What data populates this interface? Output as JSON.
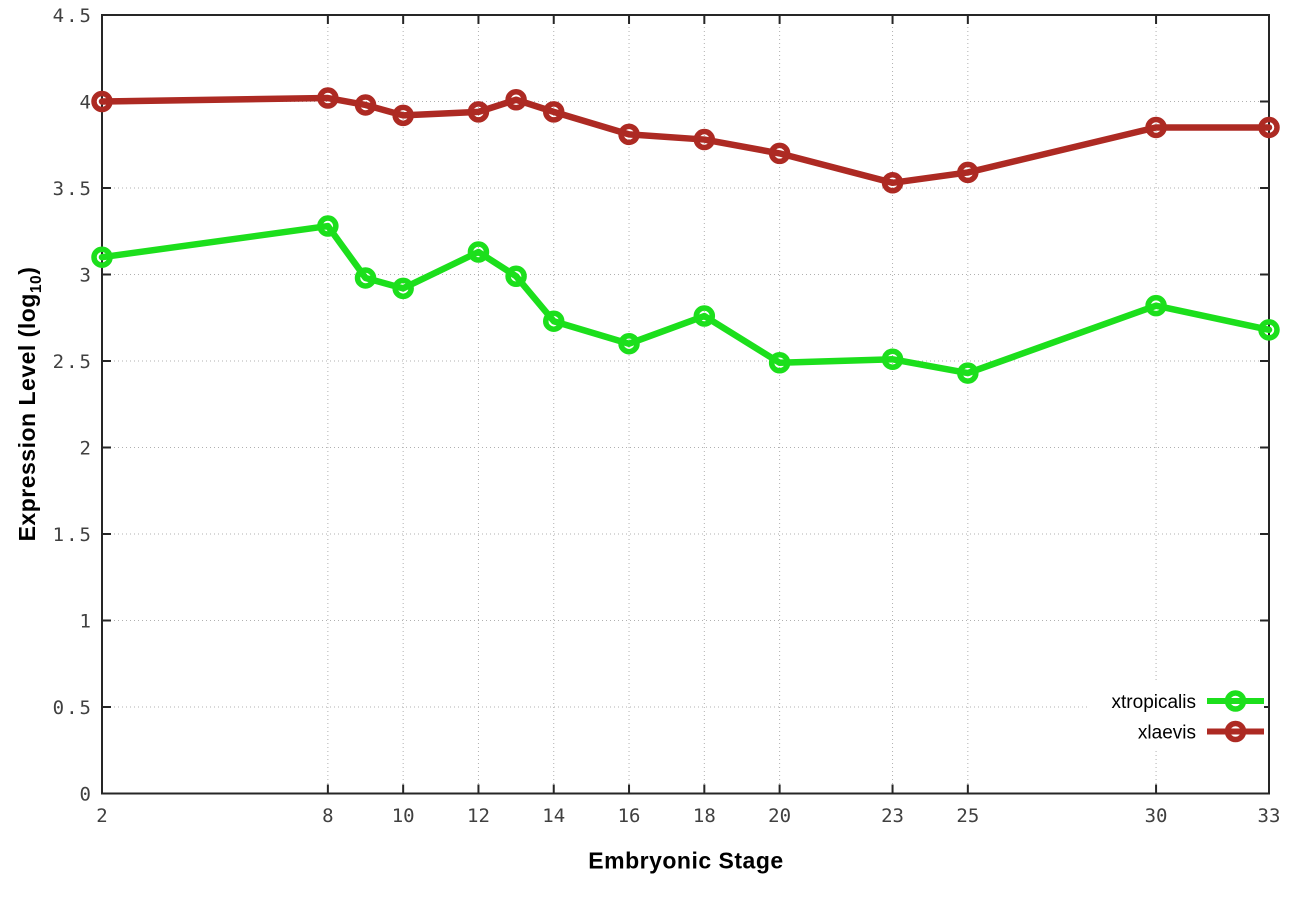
{
  "chart_data": {
    "type": "line",
    "title": "",
    "xlabel": "Embryonic Stage",
    "ylabel": {
      "prefix": "Expression Level (log",
      "subscript": "10",
      "suffix": ")"
    },
    "xlim": [
      2,
      33
    ],
    "ylim": [
      0,
      4.5
    ],
    "grid": true,
    "legend_position": "inside-bottom-right",
    "x": [
      2,
      8,
      9,
      10,
      12,
      13,
      14,
      16,
      18,
      20,
      23,
      25,
      30,
      33
    ],
    "xticks": [
      {
        "value": 2,
        "label": "2"
      },
      {
        "value": 8,
        "label": "8"
      },
      {
        "value": 10,
        "label": "10"
      },
      {
        "value": 12,
        "label": "12"
      },
      {
        "value": 14,
        "label": "14"
      },
      {
        "value": 16,
        "label": "16"
      },
      {
        "value": 18,
        "label": "18"
      },
      {
        "value": 20,
        "label": "20"
      },
      {
        "value": 23,
        "label": "23"
      },
      {
        "value": 25,
        "label": "25"
      },
      {
        "value": 30,
        "label": "30"
      },
      {
        "value": 33,
        "label": "33"
      }
    ],
    "yticks": [
      {
        "value": 0,
        "label": "0"
      },
      {
        "value": 0.5,
        "label": "0.5"
      },
      {
        "value": 1,
        "label": "1"
      },
      {
        "value": 1.5,
        "label": "1.5"
      },
      {
        "value": 2,
        "label": "2"
      },
      {
        "value": 2.5,
        "label": "2.5"
      },
      {
        "value": 3,
        "label": "3"
      },
      {
        "value": 3.5,
        "label": "3.5"
      },
      {
        "value": 4,
        "label": "4"
      },
      {
        "value": 4.5,
        "label": "4.5"
      }
    ],
    "series": [
      {
        "name": "xtropicalis",
        "color": "#1cdf1c",
        "marker": "open-circle",
        "values": [
          3.1,
          3.28,
          2.98,
          2.92,
          3.13,
          2.99,
          2.73,
          2.6,
          2.76,
          2.49,
          2.51,
          2.43,
          2.82,
          2.68
        ]
      },
      {
        "name": "xlaevis",
        "color": "#ad2a23",
        "marker": "open-circle",
        "values": [
          4.0,
          4.02,
          3.98,
          3.92,
          3.94,
          4.01,
          3.94,
          3.81,
          3.78,
          3.7,
          3.53,
          3.59,
          3.85,
          3.85
        ]
      }
    ],
    "styles": {
      "background": "#ffffff",
      "axis_color": "#262626",
      "grid_color": "#b0b0b0",
      "tick_label_color": "#404040",
      "legend_text_color": "#000000"
    }
  }
}
